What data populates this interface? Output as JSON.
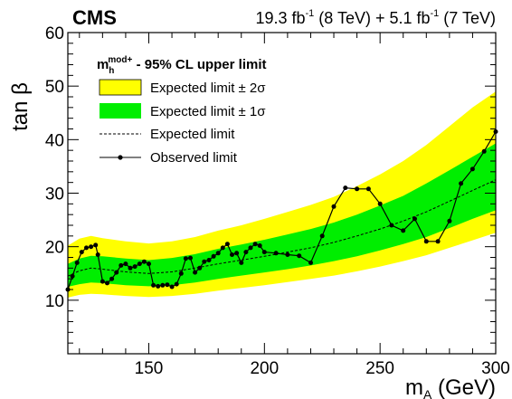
{
  "header": {
    "experiment": "CMS",
    "lumi8_value": "19.3 fb",
    "lumi8_exp": "-1",
    "lumi8_energy": " (8 TeV) + 5.1 fb",
    "lumi7_exp": "-1",
    "lumi7_energy": " (7 TeV)"
  },
  "legend": {
    "header_m": "m",
    "header_sub": "h",
    "header_sup": "mod+",
    "header_rest": " - 95% CL upper limit",
    "items": [
      {
        "label": "Expected limit ± 2σ"
      },
      {
        "label": "Expected limit ± 1σ"
      },
      {
        "label": "Expected limit"
      },
      {
        "label": "Observed limit"
      }
    ]
  },
  "colors": {
    "band2": "#ffff00",
    "band1": "#00ee00",
    "observed": "#000000",
    "expected": "#000000"
  },
  "chart_data": {
    "type": "line",
    "xlabel_main": "m",
    "xlabel_sub": "A",
    "xlabel_unit": " (GeV)",
    "ylabel": "tan β",
    "xlim": [
      115,
      300
    ],
    "ylim": [
      0,
      60
    ],
    "xticks": [
      150,
      200,
      250,
      300
    ],
    "yticks": [
      10,
      20,
      30,
      40,
      50,
      60
    ],
    "grid": false,
    "legend_position": "top-left",
    "expected": {
      "x": [
        115,
        120,
        125,
        130,
        140,
        150,
        160,
        170,
        180,
        190,
        200,
        210,
        220,
        230,
        240,
        250,
        260,
        270,
        280,
        290,
        300
      ],
      "y": [
        14.5,
        15.5,
        16.0,
        15.8,
        15.3,
        15.0,
        15.3,
        16.0,
        16.8,
        17.5,
        18.2,
        19.0,
        19.8,
        20.8,
        22.0,
        23.3,
        24.8,
        26.5,
        28.5,
        30.5,
        32.5
      ]
    },
    "band_1sigma": {
      "x": [
        115,
        120,
        125,
        130,
        140,
        150,
        160,
        170,
        180,
        190,
        200,
        210,
        220,
        230,
        240,
        250,
        260,
        270,
        280,
        290,
        300
      ],
      "low": [
        12.5,
        13.0,
        13.3,
        13.2,
        12.8,
        12.6,
        12.8,
        13.3,
        14.0,
        14.6,
        15.2,
        15.8,
        16.5,
        17.3,
        18.2,
        19.3,
        20.5,
        21.8,
        23.5,
        25.2,
        26.8
      ],
      "high": [
        16.8,
        17.8,
        18.3,
        18.2,
        17.8,
        17.5,
        17.9,
        18.6,
        19.6,
        20.4,
        21.3,
        22.3,
        23.3,
        24.5,
        26.0,
        27.7,
        29.5,
        31.8,
        34.3,
        36.8,
        39.3
      ]
    },
    "band_2sigma": {
      "x": [
        115,
        120,
        125,
        130,
        140,
        150,
        160,
        170,
        180,
        190,
        200,
        210,
        220,
        230,
        240,
        250,
        260,
        270,
        280,
        290,
        300
      ],
      "low": [
        10.5,
        11.0,
        11.2,
        11.1,
        10.8,
        10.6,
        10.8,
        11.2,
        11.8,
        12.3,
        12.8,
        13.4,
        14.0,
        14.6,
        15.4,
        16.3,
        17.3,
        18.4,
        19.8,
        21.2,
        22.6
      ],
      "high": [
        20.2,
        21.5,
        22.0,
        21.6,
        21.0,
        20.6,
        21.0,
        21.8,
        23.0,
        24.0,
        25.2,
        26.5,
        27.8,
        29.3,
        31.3,
        33.5,
        36.0,
        39.0,
        42.5,
        46.0,
        49.0
      ]
    },
    "observed": {
      "x": [
        115,
        117,
        119,
        121,
        123,
        125,
        127,
        128,
        130,
        132,
        134,
        136,
        138,
        140,
        142,
        144,
        146,
        148,
        150,
        152,
        154,
        156,
        158,
        160,
        162,
        164,
        166,
        168,
        170,
        172,
        174,
        176,
        178,
        180,
        182,
        184,
        186,
        188,
        190,
        192,
        194,
        196,
        198,
        200,
        205,
        210,
        215,
        220,
        225,
        230,
        235,
        240,
        245,
        250,
        255,
        260,
        265,
        270,
        275,
        280,
        285,
        290,
        295,
        300
      ],
      "y": [
        12.0,
        14.5,
        17.0,
        19.0,
        19.8,
        20.0,
        20.3,
        18.5,
        13.5,
        13.2,
        14.0,
        15.2,
        16.5,
        16.8,
        16.0,
        16.3,
        16.8,
        17.2,
        16.8,
        12.8,
        12.6,
        12.8,
        12.9,
        12.5,
        13.0,
        15.0,
        17.8,
        17.9,
        15.2,
        16.0,
        17.2,
        17.5,
        18.2,
        18.8,
        19.8,
        20.5,
        18.5,
        18.8,
        17.0,
        19.0,
        19.8,
        20.5,
        20.2,
        19.0,
        18.8,
        18.5,
        18.3,
        17.0,
        22.0,
        27.5,
        31.0,
        30.8,
        30.8,
        28.0,
        24.0,
        23.0,
        25.2,
        21.0,
        21.0,
        24.8,
        31.8,
        34.5,
        37.8,
        41.5
      ]
    }
  }
}
